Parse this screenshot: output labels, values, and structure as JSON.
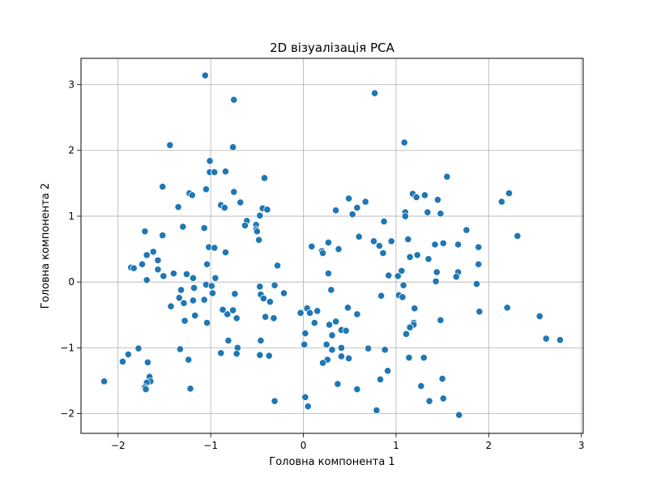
{
  "chart_data": {
    "type": "scatter",
    "title": "2D візуалізація PCA",
    "xlabel": "Головна компонента 1",
    "ylabel": "Головна компонента 2",
    "xlim": [
      -2.4,
      3.02
    ],
    "ylim": [
      -2.3,
      3.4
    ],
    "xticks": [
      -2,
      -1,
      0,
      1,
      2,
      3
    ],
    "yticks": [
      -2,
      -1,
      0,
      1,
      2,
      3
    ],
    "xtick_labels": [
      "−2",
      "−1",
      "0",
      "1",
      "2",
      "3"
    ],
    "ytick_labels": [
      "−2",
      "−1",
      "0",
      "1",
      "2",
      "3"
    ],
    "grid": true,
    "marker_color": "#1f77b4",
    "points": [
      [
        -1.06,
        3.14
      ],
      [
        -0.75,
        2.77
      ],
      [
        0.77,
        2.87
      ],
      [
        1.09,
        2.12
      ],
      [
        -1.44,
        2.08
      ],
      [
        -0.76,
        2.05
      ],
      [
        -1.01,
        1.84
      ],
      [
        -1.01,
        1.67
      ],
      [
        -0.96,
        1.67
      ],
      [
        -0.84,
        1.68
      ],
      [
        -0.42,
        1.58
      ],
      [
        1.55,
        1.6
      ],
      [
        -1.52,
        1.45
      ],
      [
        -1.05,
        1.41
      ],
      [
        -0.75,
        1.37
      ],
      [
        -1.23,
        1.35
      ],
      [
        -1.2,
        1.32
      ],
      [
        1.18,
        1.34
      ],
      [
        1.31,
        1.32
      ],
      [
        1.22,
        1.29
      ],
      [
        1.45,
        1.25
      ],
      [
        0.49,
        1.27
      ],
      [
        0.67,
        1.22
      ],
      [
        2.14,
        1.22
      ],
      [
        2.22,
        1.35
      ],
      [
        -0.68,
        1.21
      ],
      [
        -0.89,
        1.17
      ],
      [
        -0.85,
        1.13
      ],
      [
        -1.35,
        1.14
      ],
      [
        -0.44,
        1.12
      ],
      [
        -0.39,
        1.1
      ],
      [
        0.35,
        1.09
      ],
      [
        0.58,
        1.13
      ],
      [
        0.53,
        1.03
      ],
      [
        1.1,
        1.06
      ],
      [
        1.34,
        1.06
      ],
      [
        1.1,
        1.0
      ],
      [
        1.48,
        1.04
      ],
      [
        -0.47,
        1.01
      ],
      [
        -0.61,
        0.93
      ],
      [
        -0.63,
        0.86
      ],
      [
        -0.51,
        0.87
      ],
      [
        -0.51,
        0.8
      ],
      [
        -0.5,
        0.77
      ],
      [
        0.87,
        0.92
      ],
      [
        -1.71,
        0.77
      ],
      [
        -1.3,
        0.84
      ],
      [
        -1.07,
        0.82
      ],
      [
        1.76,
        0.79
      ],
      [
        -1.52,
        0.71
      ],
      [
        2.31,
        0.7
      ],
      [
        0.6,
        0.69
      ],
      [
        0.76,
        0.62
      ],
      [
        0.95,
        0.62
      ],
      [
        1.13,
        0.65
      ],
      [
        1.42,
        0.57
      ],
      [
        1.51,
        0.59
      ],
      [
        1.67,
        0.57
      ],
      [
        1.89,
        0.53
      ],
      [
        -0.48,
        0.64
      ],
      [
        -1.02,
        0.53
      ],
      [
        -0.96,
        0.52
      ],
      [
        0.09,
        0.54
      ],
      [
        0.2,
        0.47
      ],
      [
        0.27,
        0.6
      ],
      [
        0.38,
        0.5
      ],
      [
        0.21,
        0.44
      ],
      [
        0.82,
        0.55
      ],
      [
        0.86,
        0.44
      ],
      [
        -1.62,
        0.46
      ],
      [
        -0.84,
        0.45
      ],
      [
        -1.69,
        0.41
      ],
      [
        1.15,
        0.38
      ],
      [
        1.23,
        0.41
      ],
      [
        1.35,
        0.35
      ],
      [
        -1.57,
        0.33
      ],
      [
        -1.74,
        0.27
      ],
      [
        -1.86,
        0.22
      ],
      [
        -1.83,
        0.21
      ],
      [
        -1.57,
        0.19
      ],
      [
        -1.04,
        0.27
      ],
      [
        -0.28,
        0.25
      ],
      [
        1.89,
        0.27
      ],
      [
        1.06,
        0.17
      ],
      [
        1.44,
        0.15
      ],
      [
        1.67,
        0.15
      ],
      [
        -1.4,
        0.13
      ],
      [
        -1.26,
        0.12
      ],
      [
        -1.51,
        0.09
      ],
      [
        -1.19,
        0.06
      ],
      [
        -0.95,
        0.06
      ],
      [
        0.27,
        0.13
      ],
      [
        0.92,
        0.1
      ],
      [
        1.02,
        0.09
      ],
      [
        1.65,
        0.08
      ],
      [
        -1.69,
        0.03
      ],
      [
        1.43,
        0.01
      ],
      [
        1.87,
        -0.03
      ],
      [
        -1.05,
        -0.04
      ],
      [
        -0.99,
        -0.06
      ],
      [
        -0.47,
        -0.07
      ],
      [
        -1.18,
        -0.09
      ],
      [
        -0.31,
        -0.05
      ],
      [
        -0.98,
        -0.17
      ],
      [
        0.3,
        -0.12
      ],
      [
        1.08,
        -0.05
      ],
      [
        -1.32,
        -0.12
      ],
      [
        -0.74,
        -0.18
      ],
      [
        -0.21,
        -0.17
      ],
      [
        -0.46,
        -0.19
      ],
      [
        -0.43,
        -0.25
      ],
      [
        -0.36,
        -0.3
      ],
      [
        1.03,
        -0.2
      ],
      [
        1.07,
        -0.23
      ],
      [
        0.84,
        -0.21
      ],
      [
        -1.34,
        -0.24
      ],
      [
        -1.29,
        -0.32
      ],
      [
        -1.19,
        -0.28
      ],
      [
        -1.07,
        -0.27
      ],
      [
        -1.43,
        -0.37
      ],
      [
        -0.87,
        -0.42
      ],
      [
        -0.82,
        -0.49
      ],
      [
        -0.76,
        -0.43
      ],
      [
        0.04,
        -0.4
      ],
      [
        0.07,
        -0.47
      ],
      [
        -0.03,
        -0.47
      ],
      [
        0.15,
        -0.44
      ],
      [
        0.48,
        -0.39
      ],
      [
        0.58,
        -0.49
      ],
      [
        1.2,
        -0.4
      ],
      [
        1.9,
        -0.45
      ],
      [
        2.2,
        -0.39
      ],
      [
        -1.17,
        -0.51
      ],
      [
        -1.28,
        -0.59
      ],
      [
        -0.41,
        -0.53
      ],
      [
        -0.72,
        -0.55
      ],
      [
        -0.32,
        -0.55
      ],
      [
        1.19,
        -0.62
      ],
      [
        1.19,
        -0.65
      ],
      [
        1.48,
        -0.58
      ],
      [
        0.12,
        -0.62
      ],
      [
        0.35,
        -0.6
      ],
      [
        0.28,
        -0.65
      ],
      [
        0.41,
        -0.73
      ],
      [
        0.46,
        -0.74
      ],
      [
        1.15,
        -0.69
      ],
      [
        1.11,
        -0.79
      ],
      [
        2.55,
        -0.52
      ],
      [
        -1.04,
        -0.62
      ],
      [
        0.02,
        -0.78
      ],
      [
        0.31,
        -0.81
      ],
      [
        0.25,
        -0.95
      ],
      [
        2.62,
        -0.86
      ],
      [
        2.77,
        -0.88
      ],
      [
        -0.46,
        -0.89
      ],
      [
        -0.81,
        -0.89
      ],
      [
        0.01,
        -0.95
      ],
      [
        -1.33,
        -1.02
      ],
      [
        -1.78,
        -1.01
      ],
      [
        -0.71,
        -1.0
      ],
      [
        0.31,
        -1.03
      ],
      [
        0.41,
        -1.0
      ],
      [
        0.7,
        -1.01
      ],
      [
        0.88,
        -1.03
      ],
      [
        -0.89,
        -1.08
      ],
      [
        -0.72,
        -1.09
      ],
      [
        -1.89,
        -1.1
      ],
      [
        -0.47,
        -1.11
      ],
      [
        -0.37,
        -1.12
      ],
      [
        0.41,
        -1.13
      ],
      [
        0.49,
        -1.16
      ],
      [
        1.14,
        -1.15
      ],
      [
        1.3,
        -1.15
      ],
      [
        -1.24,
        -1.18
      ],
      [
        0.26,
        -1.18
      ],
      [
        0.21,
        -1.23
      ],
      [
        -1.95,
        -1.21
      ],
      [
        -1.68,
        -1.22
      ],
      [
        0.91,
        -1.35
      ],
      [
        -1.66,
        -1.44
      ],
      [
        -1.65,
        -1.51
      ],
      [
        -1.69,
        -1.53
      ],
      [
        -2.15,
        -1.51
      ],
      [
        0.37,
        -1.55
      ],
      [
        0.83,
        -1.48
      ],
      [
        1.27,
        -1.58
      ],
      [
        1.5,
        -1.47
      ],
      [
        -1.71,
        -1.6
      ],
      [
        -1.7,
        -1.63
      ],
      [
        -1.22,
        -1.62
      ],
      [
        0.58,
        -1.63
      ],
      [
        -0.31,
        -1.81
      ],
      [
        0.02,
        -1.75
      ],
      [
        0.05,
        -1.89
      ],
      [
        1.36,
        -1.81
      ],
      [
        1.51,
        -1.77
      ],
      [
        0.79,
        -1.95
      ],
      [
        1.68,
        -2.02
      ]
    ]
  }
}
